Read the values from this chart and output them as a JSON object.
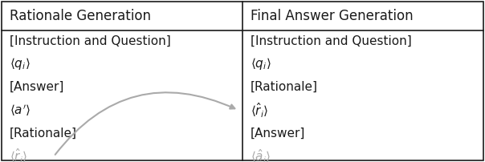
{
  "fig_width": 6.04,
  "fig_height": 2.02,
  "dpi": 100,
  "bg_color": "#ffffff",
  "border_color": "#1a1a1a",
  "gray_color": "#aaaaaa",
  "black_color": "#1a1a1a",
  "header_fontsize": 12,
  "item_fontsize": 11,
  "col1_header": "Rationale Generation",
  "col2_header": "Final Answer Generation",
  "col1_items_text": [
    "[Instruction and Question]",
    "$\\langle q_i \\rangle$",
    "[Answer]",
    "$\\langle a^{\\prime} \\rangle$",
    "[Rationale]",
    "$\\langle \\hat{r}_i \\rangle$"
  ],
  "col1_items_gray": [
    false,
    false,
    false,
    false,
    false,
    true
  ],
  "col2_items_text": [
    "[Instruction and Question]",
    "$\\langle q_i \\rangle$",
    "[Rationale]",
    "$\\langle \\hat{r}_i \\rangle$",
    "[Answer]",
    "$\\langle \\hat{a}_i \\rangle$"
  ],
  "col2_items_gray": [
    false,
    false,
    false,
    false,
    false,
    true
  ],
  "arrow_color": "#aaaaaa",
  "arrow_lw": 1.5
}
